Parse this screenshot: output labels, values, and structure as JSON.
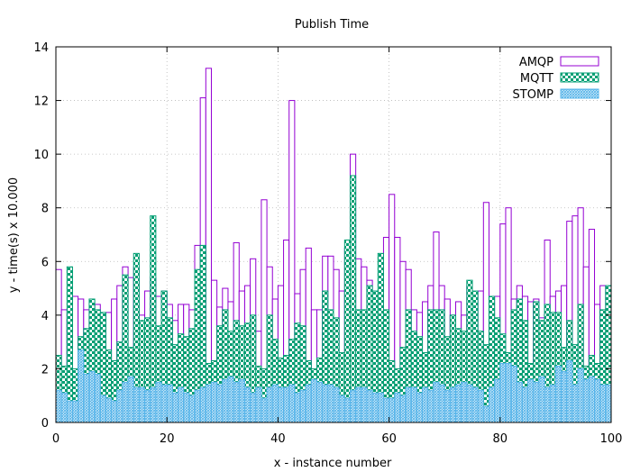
{
  "chart_data": {
    "type": "bar",
    "title": "Publish Time",
    "xlabel": "x - instance number",
    "ylabel": "y - time(s) x 10.000",
    "xlim": [
      0,
      100
    ],
    "ylim": [
      0,
      14
    ],
    "x_ticks": [
      "0",
      "20",
      "40",
      "60",
      "80",
      "100"
    ],
    "y_ticks": [
      "0",
      "2",
      "4",
      "6",
      "8",
      "10",
      "12",
      "14"
    ],
    "grid": true,
    "legend_position": "top-right",
    "style": "overlapping histogram (stacked visually, each series from 0)",
    "series": [
      {
        "name": "AMQP",
        "color": "#9400d3",
        "fill": "empty",
        "values": [
          5.7,
          4.2,
          3.8,
          4.7,
          4.6,
          4.2,
          3.9,
          4.4,
          3.9,
          4.1,
          4.6,
          5.1,
          5.8,
          5.4,
          5.8,
          4.0,
          4.9,
          5.4,
          4.7,
          4.9,
          4.4,
          3.8,
          4.4,
          4.4,
          4.2,
          6.6,
          12.1,
          13.2,
          5.3,
          4.3,
          5.0,
          4.5,
          6.7,
          4.9,
          5.1,
          6.1,
          3.4,
          8.3,
          5.8,
          4.6,
          5.1,
          6.8,
          12.0,
          4.8,
          5.7,
          6.5,
          4.2,
          4.2,
          6.2,
          6.2,
          5.7,
          4.9,
          6.5,
          10.0,
          6.1,
          5.8,
          5.3,
          4.8,
          3.6,
          6.9,
          8.5,
          6.9,
          6.0,
          5.7,
          4.2,
          4.1,
          4.5,
          5.1,
          7.1,
          5.1,
          4.6,
          4.0,
          4.5,
          4.0,
          5.1,
          4.3,
          4.9,
          8.2,
          4.7,
          4.7,
          7.4,
          8.0,
          4.6,
          5.1,
          4.7,
          4.5,
          4.6,
          3.9,
          6.8,
          4.7,
          4.9,
          5.1,
          7.5,
          7.7,
          8.0,
          5.8,
          7.2,
          4.4,
          5.1,
          2.2
        ]
      },
      {
        "name": "MQTT",
        "color": "#009e73",
        "fill": "checkerboard",
        "values": [
          2.5,
          2.1,
          5.8,
          2.0,
          3.2,
          3.5,
          4.6,
          4.2,
          4.1,
          2.7,
          2.3,
          3.0,
          5.5,
          2.8,
          6.3,
          3.8,
          3.9,
          7.7,
          3.6,
          4.9,
          3.9,
          2.9,
          3.3,
          3.2,
          3.5,
          5.7,
          6.6,
          2.2,
          2.3,
          3.6,
          4.2,
          3.4,
          3.8,
          3.6,
          3.7,
          4.0,
          2.1,
          2.0,
          4.0,
          3.1,
          2.4,
          2.5,
          3.1,
          3.7,
          3.6,
          2.3,
          2.0,
          2.4,
          4.9,
          4.2,
          3.9,
          2.6,
          6.8,
          9.2,
          4.2,
          4.2,
          5.1,
          4.9,
          6.3,
          4.2,
          2.3,
          2.0,
          2.8,
          4.2,
          3.4,
          3.2,
          2.6,
          4.2,
          4.2,
          4.2,
          3.2,
          4.0,
          3.5,
          3.4,
          5.3,
          4.9,
          3.4,
          2.9,
          4.7,
          3.9,
          3.3,
          2.6,
          4.2,
          4.6,
          3.8,
          2.2,
          4.5,
          3.8,
          4.4,
          4.1,
          4.1,
          2.8,
          3.8,
          2.9,
          4.4,
          2.1,
          2.5,
          2.2,
          4.2,
          5.1
        ]
      },
      {
        "name": "STOMP",
        "color": "#56b4e9",
        "fill": "dense-hatch",
        "values": [
          1.2,
          1.1,
          0.8,
          0.8,
          2.7,
          1.8,
          1.9,
          1.8,
          1.0,
          0.9,
          0.8,
          1.2,
          1.5,
          1.7,
          1.3,
          1.3,
          1.2,
          1.3,
          1.5,
          1.4,
          1.4,
          1.1,
          1.3,
          1.1,
          1.0,
          1.2,
          1.3,
          1.4,
          1.5,
          1.4,
          1.6,
          1.7,
          1.5,
          1.6,
          1.3,
          1.1,
          1.3,
          0.9,
          1.3,
          1.4,
          1.3,
          1.3,
          1.4,
          1.1,
          1.2,
          1.4,
          1.6,
          1.5,
          1.4,
          1.4,
          1.3,
          1.0,
          0.9,
          1.2,
          1.3,
          1.3,
          1.2,
          1.1,
          1.1,
          0.9,
          0.9,
          1.1,
          1.0,
          1.3,
          1.3,
          1.1,
          1.3,
          1.2,
          1.5,
          1.4,
          1.2,
          1.3,
          1.4,
          1.5,
          1.4,
          1.3,
          1.2,
          0.6,
          1.3,
          1.6,
          2.2,
          2.2,
          2.1,
          1.5,
          1.3,
          1.6,
          1.5,
          1.7,
          1.3,
          1.4,
          2.1,
          1.9,
          2.3,
          1.4,
          2.0,
          1.6,
          1.7,
          1.6,
          1.4,
          1.4
        ]
      }
    ]
  }
}
